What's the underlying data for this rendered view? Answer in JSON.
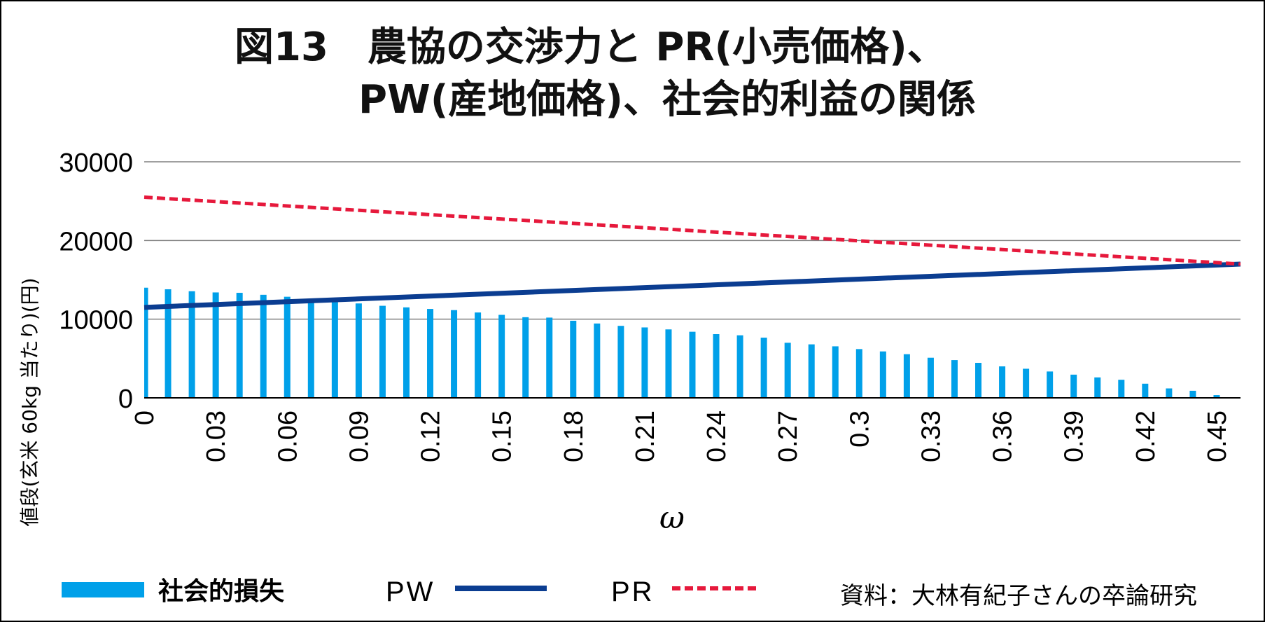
{
  "title_line1": "図13　農協の交渉力と PR(小売価格)、",
  "title_line2": "PW(産地価格)、社会的利益の関係",
  "source_text": "資料：大林有紀子さんの卒論研究",
  "colors": {
    "bar": "#00a0e9",
    "pw_line": "#0b3d91",
    "pr_line": "#e6193c",
    "grid": "#808080"
  },
  "chart_data": {
    "type": "bar",
    "title": "図13　農協の交渉力と PR(小売価格)、PW(産地価格)、社会的利益の関係",
    "xlabel": "ω",
    "ylabel": "値段(玄米 60kg 当たり)(円)",
    "ylim": [
      0,
      30000
    ],
    "yticks": [
      "0",
      "10000",
      "20000",
      "30000"
    ],
    "grid": true,
    "legend_position": "bottom",
    "x": [
      0,
      0.01,
      0.02,
      0.03,
      0.04,
      0.05,
      0.06,
      0.07,
      0.08,
      0.09,
      0.1,
      0.11,
      0.12,
      0.13,
      0.14,
      0.15,
      0.16,
      0.17,
      0.18,
      0.19,
      0.2,
      0.21,
      0.22,
      0.23,
      0.24,
      0.25,
      0.26,
      0.27,
      0.28,
      0.29,
      0.3,
      0.31,
      0.32,
      0.33,
      0.34,
      0.35,
      0.36,
      0.37,
      0.38,
      0.39,
      0.4,
      0.41,
      0.42,
      0.43,
      0.44,
      0.45,
      0.46
    ],
    "tick_labels": [
      "0",
      "0.03",
      "0.06",
      "0.09",
      "0.12",
      "0.15",
      "0.18",
      "0.21",
      "0.24",
      "0.27",
      "0.3",
      "0.33",
      "0.36",
      "0.39",
      "0.42",
      "0.45"
    ],
    "series": [
      {
        "name": "社会的損失",
        "type": "bar",
        "values": [
          14000,
          13800,
          13550,
          13400,
          13350,
          13100,
          12850,
          12500,
          12200,
          12000,
          11700,
          11500,
          11300,
          11150,
          10850,
          10550,
          10250,
          10200,
          9800,
          9450,
          9150,
          8950,
          8700,
          8400,
          8100,
          7950,
          7650,
          7000,
          6800,
          6550,
          6200,
          5900,
          5550,
          5100,
          4800,
          4450,
          4000,
          3700,
          3350,
          2950,
          2600,
          2300,
          1800,
          1200,
          900,
          350,
          0
        ]
      },
      {
        "name": "PW",
        "type": "line",
        "start": 11500,
        "end": 17000
      },
      {
        "name": "PR",
        "type": "line",
        "style": "dashed",
        "start": 25500,
        "end": 17000
      }
    ]
  }
}
